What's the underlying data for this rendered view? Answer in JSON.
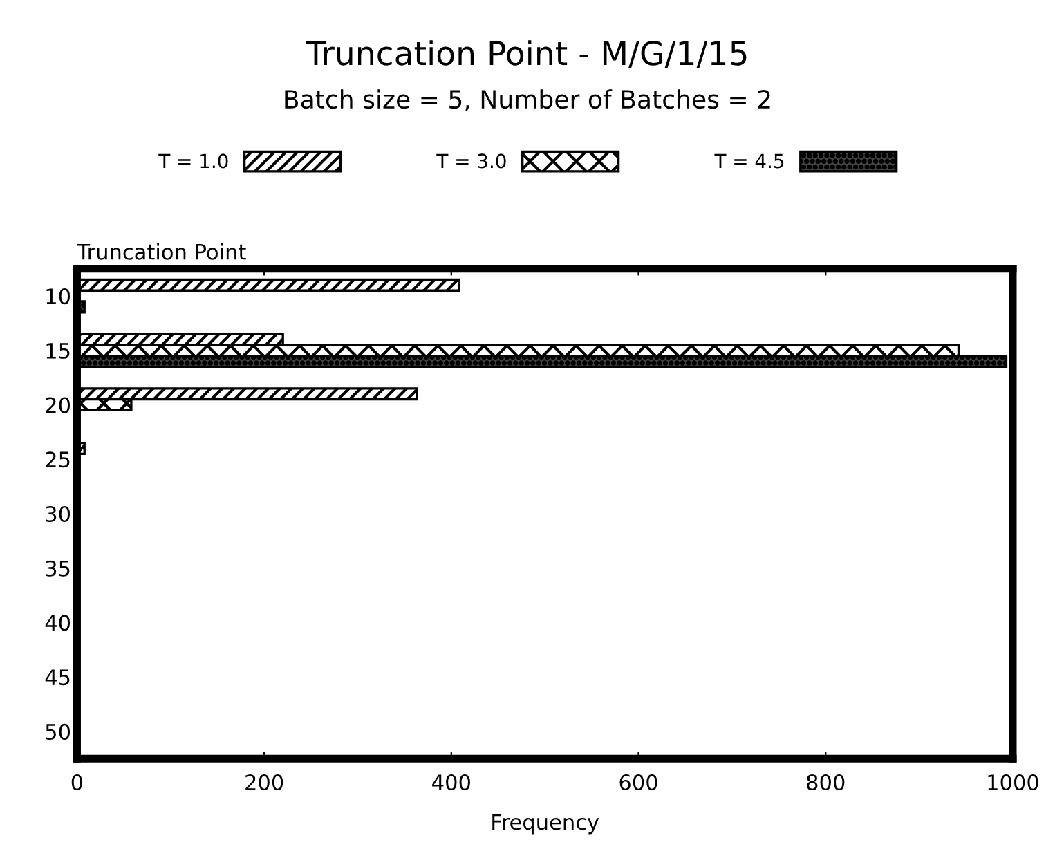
{
  "chart_data": {
    "type": "bar",
    "orientation": "horizontal",
    "title": "Truncation Point - M/G/1/15",
    "subtitle": "Batch size = 5, Number of Batches = 2",
    "xlabel": "Frequency",
    "ylabel": "Truncation Point",
    "series": [
      {
        "name": "T = 1.0",
        "color": "#000000",
        "x": [
          9,
          14,
          19,
          24
        ],
        "values": [
          408,
          220,
          363,
          8
        ]
      },
      {
        "name": "T = 3.0",
        "color": "#000000",
        "x": [
          15,
          20
        ],
        "values": [
          942,
          58
        ]
      },
      {
        "name": "T = 4.5",
        "color": "#000000",
        "x": [
          11,
          16
        ],
        "values": [
          8,
          993
        ]
      }
    ],
    "xlim": [
      0,
      1000
    ],
    "xticks": [
      0,
      200,
      400,
      600,
      800,
      1000
    ],
    "ylim": [
      52.5,
      7.5
    ],
    "yticks": [
      10,
      15,
      20,
      25,
      30,
      35,
      40,
      45,
      50
    ],
    "grid": false,
    "legend": "top"
  }
}
